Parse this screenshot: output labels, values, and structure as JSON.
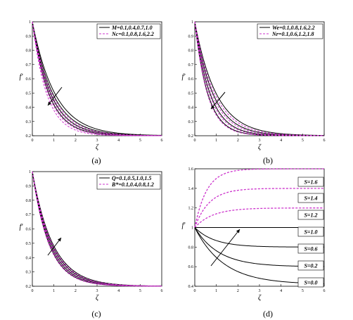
{
  "colors": {
    "solid": "#000000",
    "dashed": "#cc33cc"
  },
  "chart_data": [
    {
      "id": "a",
      "type": "line",
      "caption": "(a)",
      "xlabel": "ζ",
      "ylabel": "f′",
      "xlim": [
        0,
        6
      ],
      "ylim": [
        0.2,
        1.0
      ],
      "xticks": [
        "0",
        "1",
        "2",
        "3",
        "4",
        "5",
        "6"
      ],
      "yticks": [
        "0.2",
        "0.3",
        "0.4",
        "0.5",
        "0.6",
        "0.7",
        "0.8",
        "0.9",
        "1"
      ],
      "legend": [
        {
          "label": "M=0.1,0.4,0.7,1.0",
          "style": "solid"
        },
        {
          "label": "Nc=0.1,0.8,1.6,2.2",
          "style": "dashed"
        }
      ],
      "series": [
        {
          "style": "solid",
          "decays": [
            0.95,
            1.05,
            1.17,
            1.3
          ]
        },
        {
          "style": "dashed",
          "decays": [
            1.1,
            1.22,
            1.36,
            1.5
          ]
        }
      ]
    },
    {
      "id": "b",
      "type": "line",
      "caption": "(b)",
      "xlabel": "ζ",
      "ylabel": "f′",
      "xlim": [
        0,
        6
      ],
      "ylim": [
        0.2,
        1.0
      ],
      "xticks": [
        "0",
        "1",
        "2",
        "3",
        "4",
        "5",
        "6"
      ],
      "yticks": [
        "0.2",
        "0.3",
        "0.4",
        "0.5",
        "0.6",
        "0.7",
        "0.8",
        "0.9",
        "1"
      ],
      "legend": [
        {
          "label": "We=0.1,0.8,1.6,2.2",
          "style": "solid"
        },
        {
          "label": "Nr=0.1,0.6,1.2,1.8",
          "style": "dashed"
        }
      ],
      "series": [
        {
          "style": "solid",
          "decays": [
            1.0,
            1.18,
            1.4,
            1.65
          ]
        },
        {
          "style": "dashed",
          "decays": [
            1.08,
            1.26,
            1.48,
            1.72
          ]
        }
      ]
    },
    {
      "id": "c",
      "type": "line",
      "caption": "(c)",
      "xlabel": "ζ",
      "ylabel": "f′",
      "xlim": [
        0,
        6
      ],
      "ylim": [
        0.2,
        1.0
      ],
      "xticks": [
        "0",
        "1",
        "2",
        "3",
        "4",
        "5",
        "6"
      ],
      "yticks": [
        "0.2",
        "0.3",
        "0.4",
        "0.5",
        "0.6",
        "0.7",
        "0.8",
        "0.9",
        "1"
      ],
      "legend": [
        {
          "label": "Q=0.1,0.5,1.0,1.5",
          "style": "solid"
        },
        {
          "label": "B*=0.1,0.4,0.8,1.2",
          "style": "dashed"
        }
      ],
      "series": [
        {
          "style": "solid",
          "decays": [
            1.05,
            1.12,
            1.2,
            1.28
          ]
        },
        {
          "style": "dashed",
          "decays": [
            1.08,
            1.15,
            1.23,
            1.31
          ]
        }
      ]
    },
    {
      "id": "d",
      "type": "line",
      "caption": "(d)",
      "xlabel": "ζ",
      "ylabel": "f′",
      "xlim": [
        0,
        6
      ],
      "ylim": [
        0.4,
        1.6
      ],
      "xticks": [
        "0",
        "1",
        "2",
        "3",
        "4",
        "5",
        "6"
      ],
      "yticks": [
        "0.4",
        "0.6",
        "0.8",
        "1",
        "1.2",
        "1.4",
        "1.6"
      ],
      "curves": [
        {
          "label": "S=1.6",
          "asymptote": 1.6,
          "style": "dashed",
          "rate": 1.8
        },
        {
          "label": "S=1.4",
          "asymptote": 1.4,
          "style": "dashed",
          "rate": 1.5
        },
        {
          "label": "S=1.2",
          "asymptote": 1.2,
          "style": "dashed",
          "rate": 1.2
        },
        {
          "label": "S=1.0",
          "asymptote": 1.0,
          "style": "solid",
          "rate": 1.0
        },
        {
          "label": "S=0.6",
          "asymptote": 0.8,
          "style": "solid",
          "rate": 1.1
        },
        {
          "label": "S=0.2",
          "asymptote": 0.6,
          "style": "solid",
          "rate": 0.9
        },
        {
          "label": "S=0.0",
          "asymptote": 0.42,
          "style": "solid",
          "rate": 0.75
        }
      ]
    }
  ]
}
